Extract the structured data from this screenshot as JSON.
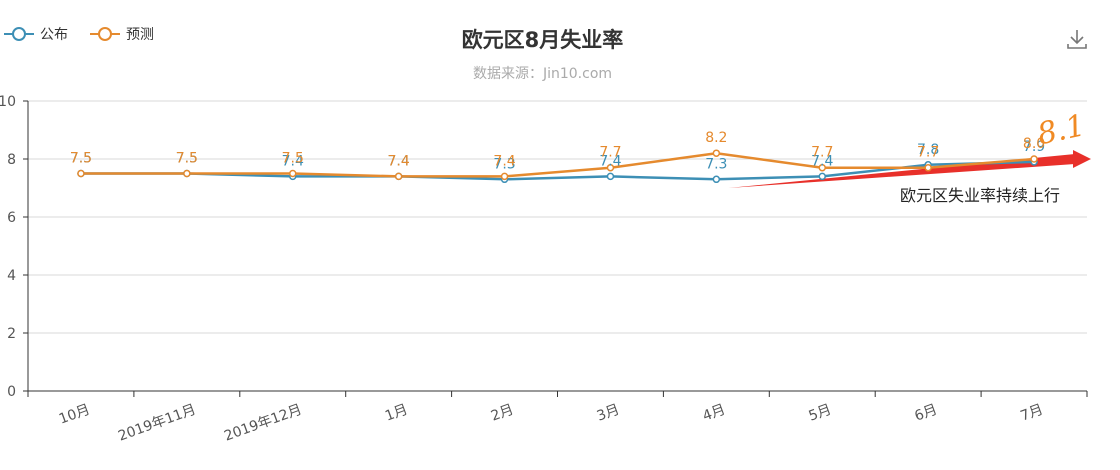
{
  "chart_data": {
    "type": "line",
    "title": "欧元区8月失业率",
    "subtitle": "数据来源：Jin10.com",
    "categories": [
      "10月",
      "2019年11月",
      "2019年12月",
      "1月",
      "2月",
      "3月",
      "4月",
      "5月",
      "6月",
      "7月"
    ],
    "series": [
      {
        "name": "公布",
        "color": "#3d8fb5",
        "values": [
          7.5,
          7.5,
          7.4,
          7.4,
          7.3,
          7.4,
          7.3,
          7.4,
          7.8,
          7.9
        ]
      },
      {
        "name": "预测",
        "color": "#e58a2e",
        "values": [
          7.5,
          7.5,
          7.5,
          7.4,
          7.4,
          7.7,
          8.2,
          7.7,
          7.7,
          8.0
        ]
      }
    ],
    "ylim": [
      0,
      10
    ],
    "yticks": [
      0,
      2,
      4,
      6,
      8,
      10
    ],
    "grid": true,
    "legend_position": "top-left",
    "xlabel": "",
    "ylabel": ""
  },
  "icons": {
    "download": "download-icon"
  },
  "annotation": {
    "text": "欧元区失业率持续上行",
    "handwritten": "8.1"
  }
}
